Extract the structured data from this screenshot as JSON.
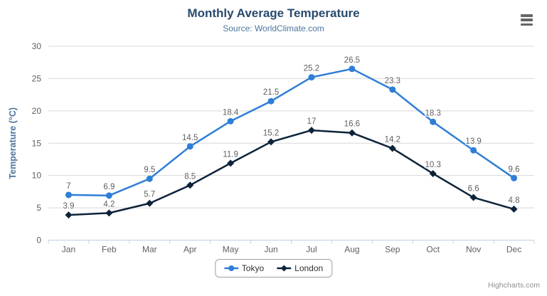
{
  "header": {
    "title": "Monthly Average Temperature",
    "subtitle": "Source: WorldClimate.com"
  },
  "icons": {
    "export_menu": "hamburger-icon"
  },
  "credits": {
    "label": "Highcharts.com"
  },
  "colors": {
    "title": "#274b6d",
    "subtitle": "#4d759e",
    "axis_title": "#4d759e",
    "axis_labels": "#606060",
    "data_labels": "#606060",
    "gridline": "#d8d8d8",
    "axis_line": "#c0d0e0",
    "legend_text": "#333333",
    "credits_text": "#909090",
    "menu_icon": "#666666"
  },
  "chart_data": {
    "type": "line",
    "title": "Monthly Average Temperature",
    "subtitle": "Source: WorldClimate.com",
    "categories": [
      "Jan",
      "Feb",
      "Mar",
      "Apr",
      "May",
      "Jun",
      "Jul",
      "Aug",
      "Sep",
      "Oct",
      "Nov",
      "Dec"
    ],
    "series": [
      {
        "name": "Tokyo",
        "color": "#2f7ed8",
        "marker": "circle",
        "values": [
          7,
          6.9,
          9.5,
          14.5,
          18.4,
          21.5,
          25.2,
          26.5,
          23.3,
          18.3,
          13.9,
          9.6
        ]
      },
      {
        "name": "London",
        "color": "#0d233a",
        "marker": "diamond",
        "values": [
          3.9,
          4.2,
          5.7,
          8.5,
          11.9,
          15.2,
          17,
          16.6,
          14.2,
          10.3,
          6.6,
          4.8
        ]
      }
    ],
    "xlabel": "",
    "ylabel": "Temperature (°C)",
    "ylim": [
      0,
      30
    ],
    "ytick_step": 5,
    "grid": true,
    "legend_position": "bottom",
    "data_labels_visible": true
  }
}
